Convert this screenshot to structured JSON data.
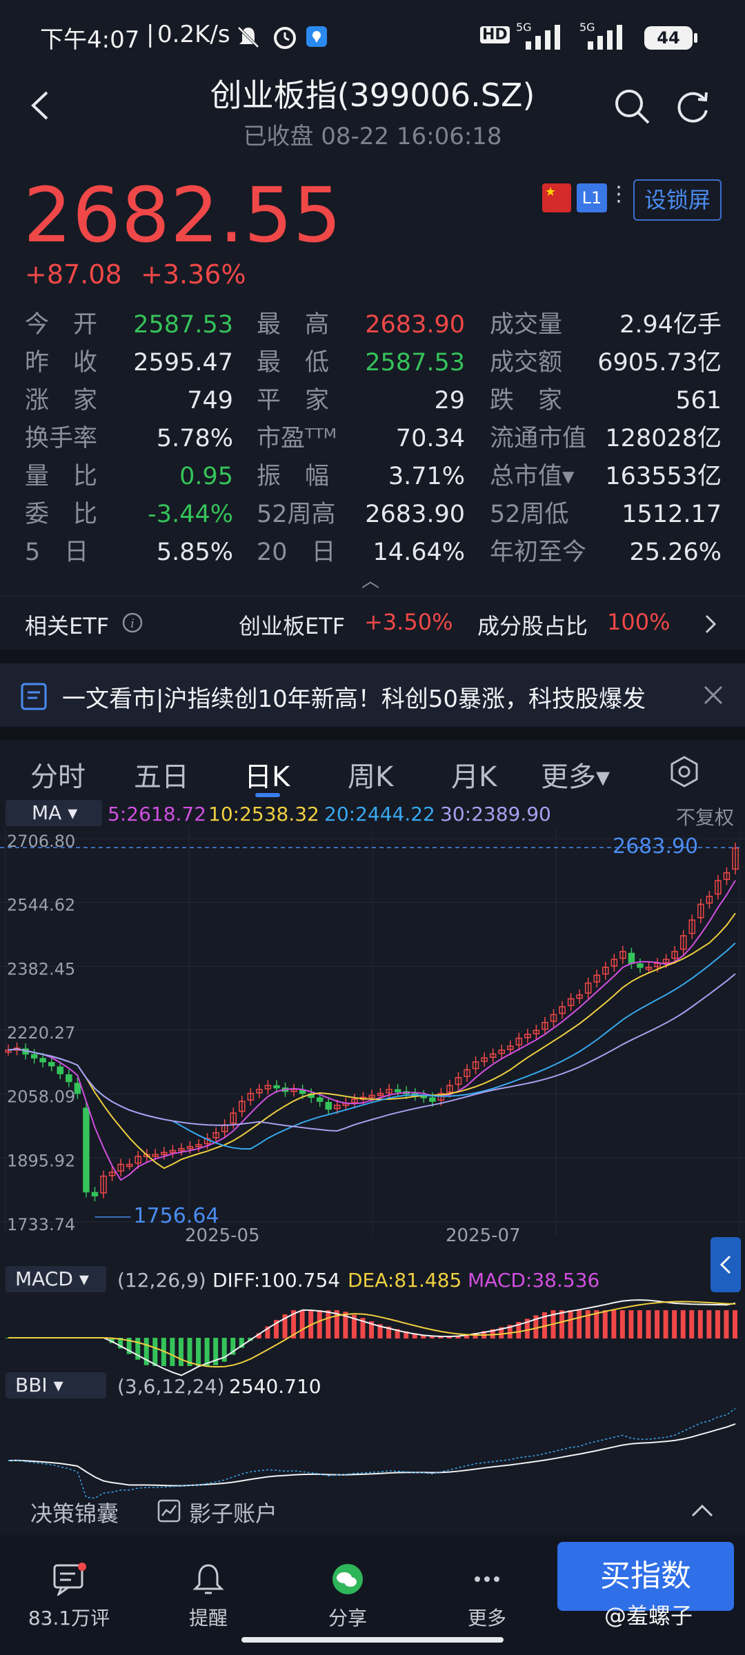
{
  "status": {
    "time": "下午4:07",
    "speed": "0.2K/s",
    "battery": "44",
    "hd": "HD",
    "net1": "5G",
    "net2": "5G"
  },
  "header": {
    "title": "创业板指(399006.SZ)",
    "subtitle": "已收盘 08-22 16:06:18"
  },
  "quote": {
    "price": "2682.55",
    "change": "+87.08",
    "change_pct": "+3.36%",
    "badge_l1": "L1",
    "lock_label": "设锁屏"
  },
  "stats": [
    {
      "l1": "今　开",
      "v1": "2587.53",
      "c1": "green",
      "l2": "最　高",
      "v2": "2683.90",
      "c2": "red",
      "l3": "成交量",
      "v3": "2.94亿手",
      "c3": "white"
    },
    {
      "l1": "昨　收",
      "v1": "2595.47",
      "c1": "white",
      "l2": "最　低",
      "v2": "2587.53",
      "c2": "green",
      "l3": "成交额",
      "v3": "6905.73亿",
      "c3": "white"
    },
    {
      "l1": "涨　家",
      "v1": "749",
      "c1": "white",
      "l2": "平　家",
      "v2": "29",
      "c2": "white",
      "l3": "跌　家",
      "v3": "561",
      "c3": "white"
    },
    {
      "l1": "换手率",
      "v1": "5.78%",
      "c1": "white",
      "l2": "市盈ᵀᵀᴹ",
      "v2": "70.34",
      "c2": "white",
      "l3": "流通市值",
      "v3": "128028亿",
      "c3": "white"
    },
    {
      "l1": "量　比",
      "v1": "0.95",
      "c1": "green",
      "l2": "振　幅",
      "v2": "3.71%",
      "c2": "white",
      "l3": "总市值▾",
      "v3": "163553亿",
      "c3": "white"
    },
    {
      "l1": "委　比",
      "v1": "-3.44%",
      "c1": "green",
      "l2": "52周高",
      "v2": "2683.90",
      "c2": "white",
      "l3": "52周低",
      "v3": "1512.17",
      "c3": "white"
    },
    {
      "l1": "5　日",
      "v1": "5.85%",
      "c1": "white",
      "l2": "20　日",
      "v2": "14.64%",
      "c2": "white",
      "l3": "年初至今",
      "v3": "25.26%",
      "c3": "white"
    }
  ],
  "etf": {
    "label": "相关ETF",
    "name": "创业板ETF",
    "pct": "+3.50%",
    "ratio_label": "成分股占比",
    "ratio": "100%"
  },
  "news": {
    "text": "一文看市|沪指续创10年新高！科创50暴涨，科技股爆发"
  },
  "tabs": [
    "分时",
    "五日",
    "日K",
    "周K",
    "月K",
    "更多▾"
  ],
  "active_tab": "日K",
  "ma": {
    "button": "MA ▾",
    "items": [
      {
        "label": "5:2618.72",
        "color": "#d050e0"
      },
      {
        "label": "10:2538.32",
        "color": "#f0d040"
      },
      {
        "label": "20:2444.22",
        "color": "#38a8f0"
      },
      {
        "label": "30:2389.90",
        "color": "#a8a0f0"
      }
    ],
    "adjust": "不复权"
  },
  "chart_data": {
    "type": "candlestick",
    "y_ticks": [
      "2706.80",
      "2544.62",
      "2382.45",
      "2220.27",
      "2058.09",
      "1895.92",
      "1733.74"
    ],
    "ylim": [
      1733.74,
      2706.8
    ],
    "x_ticks": [
      "2025-05",
      "2025-07"
    ],
    "high_label": "2683.90",
    "low_label": "1756.64",
    "close": [
      2170,
      2175,
      2160,
      2150,
      2140,
      2130,
      2110,
      2090,
      2060,
      1810,
      1800,
      1850,
      1860,
      1880,
      1880,
      1900,
      1905,
      1905,
      1910,
      1915,
      1920,
      1925,
      1930,
      1945,
      1960,
      1980,
      2010,
      2040,
      2060,
      2070,
      2080,
      2075,
      2065,
      2070,
      2060,
      2050,
      2040,
      2020,
      2030,
      2035,
      2045,
      2050,
      2055,
      2060,
      2070,
      2065,
      2060,
      2055,
      2050,
      2040,
      2060,
      2080,
      2100,
      2120,
      2140,
      2150,
      2160,
      2170,
      2180,
      2200,
      2210,
      2220,
      2240,
      2260,
      2280,
      2300,
      2310,
      2340,
      2360,
      2380,
      2400,
      2420,
      2390,
      2380,
      2380,
      2390,
      2400,
      2420,
      2460,
      2500,
      2540,
      2560,
      2600,
      2620,
      2682.55
    ],
    "ma5": "pink line",
    "macd": {
      "button": "MACD ▾",
      "params": "(12,26,9)",
      "diff": "DIFF:100.754",
      "dea": "DEA:81.485",
      "macd": "MACD:38.536"
    },
    "bbi": {
      "button": "BBI ▾",
      "params": "(3,6,12,24)",
      "value": "2540.710"
    }
  },
  "tools": {
    "left": "决策锦囊",
    "right": "影子账户"
  },
  "nav": [
    {
      "label": "83.1万评",
      "icon": "comment-icon"
    },
    {
      "label": "提醒",
      "icon": "bell-icon"
    },
    {
      "label": "分享",
      "icon": "wechat-icon"
    },
    {
      "label": "更多",
      "icon": "more-icon"
    }
  ],
  "buy": "买指数",
  "watermark": "@羞螺子",
  "colors": {
    "up": "#f04848",
    "down": "#35c35a",
    "accent": "#3a7ff0"
  }
}
